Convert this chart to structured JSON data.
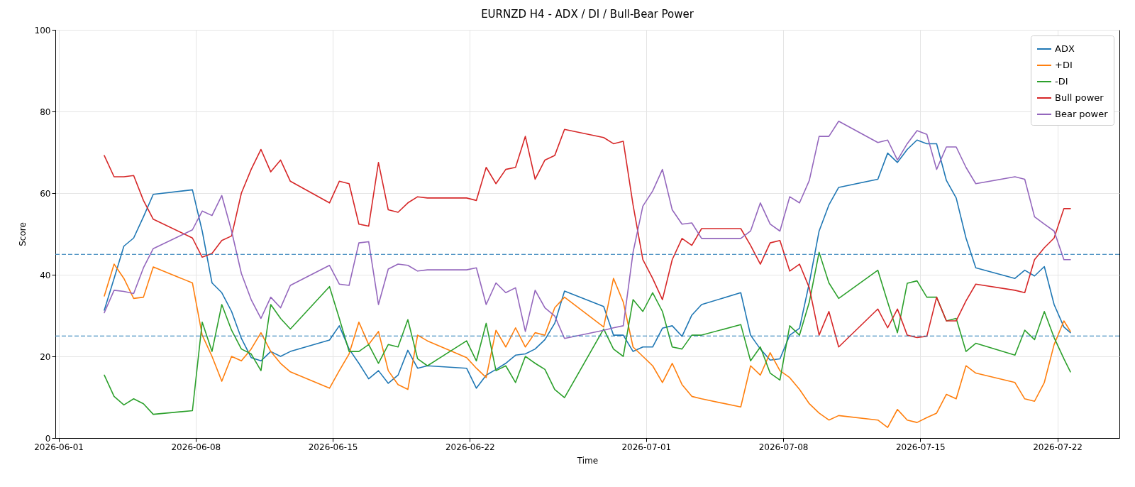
{
  "chart_data": {
    "type": "line",
    "title": "EURNZD H4 - ADX / DI / Bull-Bear Power",
    "xlabel": "Time",
    "ylabel": "Score",
    "x": [
      "2026-06-03T08:00",
      "2026-06-03T20:00",
      "2026-06-04T08:00",
      "2026-06-04T20:00",
      "2026-06-05T08:00",
      "2026-06-05T20:00",
      "2026-06-07T20:00",
      "2026-06-08T08:00",
      "2026-06-08T20:00",
      "2026-06-09T08:00",
      "2026-06-09T20:00",
      "2026-06-10T08:00",
      "2026-06-10T20:00",
      "2026-06-11T08:00",
      "2026-06-11T20:00",
      "2026-06-12T08:00",
      "2026-06-12T20:00",
      "2026-06-14T20:00",
      "2026-06-15T08:00",
      "2026-06-15T20:00",
      "2026-06-16T08:00",
      "2026-06-16T20:00",
      "2026-06-17T08:00",
      "2026-06-17T20:00",
      "2026-06-18T08:00",
      "2026-06-18T20:00",
      "2026-06-19T08:00",
      "2026-06-19T20:00",
      "2026-06-21T20:00",
      "2026-06-22T08:00",
      "2026-06-22T20:00",
      "2026-06-23T08:00",
      "2026-06-23T20:00",
      "2026-06-24T08:00",
      "2026-06-24T20:00",
      "2026-06-25T08:00",
      "2026-06-25T20:00",
      "2026-06-26T08:00",
      "2026-06-26T20:00",
      "2026-06-28T20:00",
      "2026-06-29T08:00",
      "2026-06-29T20:00",
      "2026-06-30T08:00",
      "2026-06-30T20:00",
      "2026-07-01T08:00",
      "2026-07-01T20:00",
      "2026-07-02T08:00",
      "2026-07-02T20:00",
      "2026-07-03T08:00",
      "2026-07-03T20:00",
      "2026-07-05T20:00",
      "2026-07-06T08:00",
      "2026-07-06T20:00",
      "2026-07-07T08:00",
      "2026-07-07T20:00",
      "2026-07-08T08:00",
      "2026-07-08T20:00",
      "2026-07-09T08:00",
      "2026-07-09T20:00",
      "2026-07-10T08:00",
      "2026-07-10T20:00",
      "2026-07-12T20:00",
      "2026-07-13T08:00",
      "2026-07-13T20:00",
      "2026-07-14T08:00",
      "2026-07-14T20:00",
      "2026-07-15T08:00",
      "2026-07-15T20:00",
      "2026-07-16T08:00",
      "2026-07-16T20:00",
      "2026-07-17T08:00",
      "2026-07-17T20:00",
      "2026-07-19T20:00",
      "2026-07-20T08:00",
      "2026-07-20T20:00",
      "2026-07-21T08:00",
      "2026-07-21T20:00",
      "2026-07-22T08:00",
      "2026-07-22T16:00"
    ],
    "series": [
      {
        "name": "ADX",
        "color": "#1f77b4",
        "values": [
          31.3,
          39.1,
          47,
          49,
          54.2,
          59.7,
          60.8,
          50.7,
          38,
          35.6,
          31,
          24.4,
          19.7,
          18.9,
          21.2,
          20,
          21.2,
          24,
          27.5,
          21.8,
          18.3,
          14.5,
          16.5,
          13.4,
          15.4,
          21.5,
          17.1,
          17.7,
          17.1,
          12.2,
          15.4,
          16.8,
          18.3,
          20.3,
          20.6,
          21.8,
          24.1,
          28.1,
          36,
          32.2,
          25.2,
          25.2,
          21.2,
          22.3,
          22.3,
          26.9,
          27.5,
          24.9,
          30.1,
          32.7,
          35.6,
          25.2,
          21.8,
          19.1,
          19.4,
          25.2,
          26.9,
          38,
          50.7,
          57.1,
          61.4,
          63.4,
          69.8,
          67.5,
          70.7,
          73,
          72.1,
          72.1,
          63.1,
          58.8,
          49,
          41.7,
          39.1,
          41.1,
          39.7,
          42,
          32.7,
          27.2,
          25.8
        ]
      },
      {
        "name": "+DI",
        "color": "#ff7f0e",
        "values": [
          34.8,
          42.6,
          39.1,
          34.2,
          34.5,
          41.9,
          38,
          25.2,
          20,
          13.9,
          20,
          18.9,
          21.8,
          25.8,
          21.2,
          18.3,
          16.2,
          12.2,
          16.5,
          20.6,
          28.4,
          22.9,
          26.1,
          16.5,
          13.1,
          11.9,
          25.2,
          23.8,
          19.7,
          17.1,
          14.8,
          26.4,
          22.3,
          27,
          22.3,
          25.8,
          25.2,
          31.9,
          34.5,
          27.2,
          39.1,
          33.3,
          22.3,
          20,
          17.7,
          13.6,
          18.3,
          13.1,
          10.2,
          9.6,
          7.6,
          17.7,
          15.4,
          20.9,
          16.5,
          14.8,
          11.9,
          8.4,
          6.1,
          4.4,
          5.5,
          4.4,
          2.6,
          7,
          4.4,
          3.8,
          5,
          6.1,
          10.7,
          9.6,
          17.7,
          15.9,
          13.6,
          9.6,
          9,
          13.6,
          22.9,
          28.7,
          26.1
        ]
      },
      {
        "name": "-DI",
        "color": "#2ca02c",
        "values": [
          15.4,
          10.2,
          8.1,
          9.6,
          8.4,
          5.8,
          6.7,
          28.4,
          21.2,
          32.7,
          26.4,
          21.8,
          20.6,
          16.5,
          32.7,
          29.3,
          26.7,
          37.1,
          29.3,
          21.2,
          21.2,
          22.9,
          18.3,
          22.9,
          22.3,
          29,
          19.4,
          17.7,
          23.8,
          18.9,
          28.1,
          16.5,
          17.7,
          13.6,
          20,
          18.3,
          16.8,
          11.9,
          9.9,
          26.7,
          21.8,
          20,
          33.9,
          31,
          35.6,
          31,
          22.3,
          21.8,
          25.2,
          25.2,
          27.8,
          18.9,
          22.3,
          15.9,
          14.2,
          27.5,
          25.2,
          33.3,
          45.5,
          38,
          34.2,
          41.1,
          33.3,
          25.8,
          37.9,
          38.5,
          34.5,
          34.5,
          28.7,
          29.3,
          21.2,
          23.2,
          20.3,
          26.4,
          24.1,
          31,
          24.6,
          19.4,
          16.2
        ]
      },
      {
        "name": "Bull power",
        "color": "#d62728",
        "values": [
          69.2,
          64,
          64,
          64.3,
          58.2,
          53.6,
          49,
          44.3,
          45.2,
          48.4,
          49.5,
          60,
          65.8,
          70.7,
          65.2,
          68.1,
          62.9,
          57.6,
          62.9,
          62.3,
          52.4,
          51.9,
          67.5,
          55.9,
          55.3,
          57.6,
          59.1,
          58.8,
          58.8,
          58.2,
          66.3,
          62.3,
          65.8,
          66.3,
          73.9,
          63.4,
          68.1,
          69.2,
          75.6,
          73.6,
          72.1,
          72.7,
          57.1,
          43.7,
          39.1,
          33.9,
          43.7,
          48.9,
          47.2,
          51.3,
          51.3,
          47.2,
          42.6,
          47.8,
          48.4,
          40.9,
          42.6,
          36.8,
          25.2,
          31,
          22.3,
          31.6,
          27,
          31.6,
          25.2,
          24.6,
          24.9,
          34.5,
          28.7,
          28.7,
          33.6,
          37.7,
          36.2,
          35.6,
          43.7,
          46.6,
          49,
          56.2,
          56.2
        ]
      },
      {
        "name": "Bear power",
        "color": "#9467bd",
        "values": [
          30.7,
          36.2,
          35.9,
          35.4,
          41.7,
          46.4,
          51,
          55.6,
          54.5,
          59.4,
          50.7,
          40.3,
          33.9,
          29.3,
          34.5,
          31.9,
          37.4,
          42.3,
          37.7,
          37.4,
          47.8,
          48.1,
          32.7,
          41.4,
          42.6,
          42.3,
          40.9,
          41.2,
          41.2,
          41.7,
          32.7,
          38,
          35.6,
          36.8,
          26.1,
          36.2,
          31.9,
          29.9,
          24.4,
          26.4,
          27,
          27.5,
          45.5,
          56.8,
          60.5,
          65.8,
          55.9,
          52.4,
          52.7,
          48.9,
          48.9,
          50.7,
          57.6,
          52.4,
          50.7,
          59.1,
          57.6,
          63.1,
          73.9,
          73.9,
          77.6,
          72.4,
          73,
          68.1,
          72.1,
          75.3,
          74.4,
          65.8,
          71.3,
          71.3,
          66.3,
          62.3,
          64,
          63.4,
          54.2,
          52.4,
          50.7,
          43.7,
          43.7
        ]
      }
    ],
    "xlim": [
      "2026-05-31T20:00",
      "2026-07-25T04:00"
    ],
    "xticks": [
      "2026-06-01",
      "2026-06-08",
      "2026-06-15",
      "2026-06-22",
      "2026-07-01",
      "2026-07-08",
      "2026-07-15",
      "2026-07-22"
    ],
    "ylim": [
      0,
      100
    ],
    "yticks": [
      0,
      20,
      40,
      60,
      80,
      100
    ],
    "ref_lines": [
      {
        "axis": "y",
        "value": 45,
        "color": "#1f77b4",
        "line_style": "dashed"
      },
      {
        "axis": "y",
        "value": 25,
        "color": "#1f77b4",
        "line_style": "dashed"
      }
    ],
    "grid": true,
    "legend": "top right",
    "line_style": "solid",
    "marker": "none"
  }
}
